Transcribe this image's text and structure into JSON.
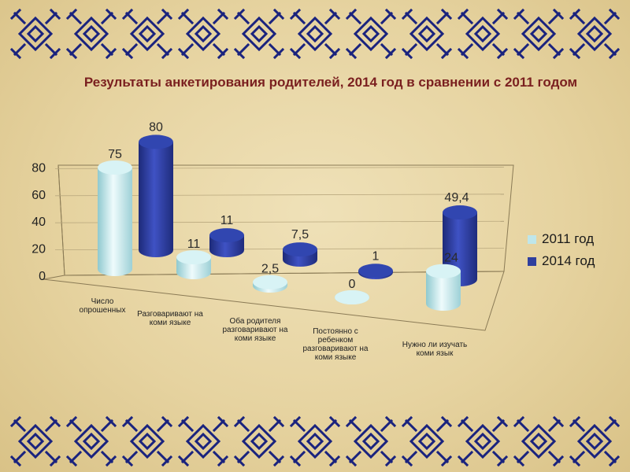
{
  "title": "Результаты анкетирования родителей, 2014 год в сравнении с 2011 годом",
  "colors": {
    "s2011": "#bfe6ea",
    "s2014": "#2f3f9e",
    "title": "#7a1f1f",
    "ornament": "#1a237e"
  },
  "chart_data": {
    "type": "bar",
    "style": "3d-cylinder",
    "categories": [
      "Число опрошенных",
      "Разговаривают на коми языке",
      "Оба родителя разговаривают на коми языке",
      "Постоянно с ребенком разговаривают на коми языке",
      "Нужно ли изучать коми язык"
    ],
    "category_lines": [
      [
        "Число",
        "опрошенных"
      ],
      [
        "Разговаривают на",
        "коми языке"
      ],
      [
        "Оба родителя",
        "разговаривают на",
        "коми языке"
      ],
      [
        "Постоянно с",
        "ребенком",
        "разговаривают на",
        "коми языке"
      ],
      [
        "Нужно ли изучать",
        "коми язык"
      ]
    ],
    "series": [
      {
        "name": "2011 год",
        "values": [
          75,
          11,
          2.5,
          0,
          24
        ],
        "labels": [
          "75",
          "11",
          "2,5",
          "0",
          "24"
        ]
      },
      {
        "name": "2014 год",
        "values": [
          80,
          11,
          7.5,
          1,
          49.4
        ],
        "labels": [
          "80",
          "11",
          "7,5",
          "1",
          "49,4"
        ]
      }
    ],
    "yticks": [
      "0",
      "20",
      "40",
      "60",
      "80"
    ],
    "ylim": [
      0,
      80
    ],
    "legend": "right"
  }
}
